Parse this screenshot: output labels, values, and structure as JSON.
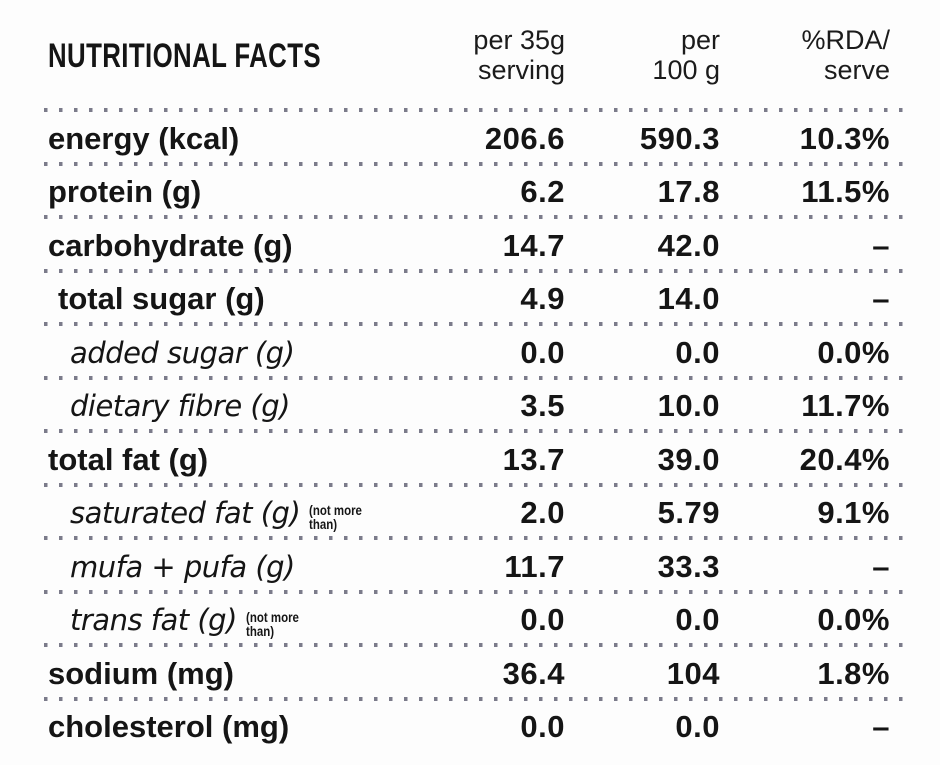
{
  "header": {
    "title": "NUTRITIONAL FACTS",
    "col_serving": "per 35g\nserving",
    "col_per_100g": "per\n100 g",
    "col_rda": "%RDA/\nserve"
  },
  "rows": [
    {
      "label": "energy (kcal)",
      "per_serving": "206.6",
      "per_100g": "590.3",
      "rda": "10.3%"
    },
    {
      "label": "protein (g)",
      "per_serving": "6.2",
      "per_100g": "17.8",
      "rda": "11.5%"
    },
    {
      "label": "carbohydrate (g)",
      "per_serving": "14.7",
      "per_100g": "42.0",
      "rda": "–"
    },
    {
      "label": "total sugar (g)",
      "per_serving": "4.9",
      "per_100g": "14.0",
      "rda": "–"
    },
    {
      "label": "added sugar (g)",
      "per_serving": "0.0",
      "per_100g": "0.0",
      "rda": "0.0%"
    },
    {
      "label": "dietary fibre (g)",
      "per_serving": "3.5",
      "per_100g": "10.0",
      "rda": "11.7%"
    },
    {
      "label": "total fat (g)",
      "per_serving": "13.7",
      "per_100g": "39.0",
      "rda": "20.4%"
    },
    {
      "label": "saturated fat (g)",
      "note": "(not more\nthan)",
      "per_serving": "2.0",
      "per_100g": "5.79",
      "rda": "9.1%"
    },
    {
      "label": "mufa + pufa (g)",
      "per_serving": "11.7",
      "per_100g": "33.3",
      "rda": "–"
    },
    {
      "label": "trans fat (g)",
      "note": "(not more\nthan)",
      "per_serving": "0.0",
      "per_100g": "0.0",
      "rda": "0.0%"
    },
    {
      "label": "sodium (mg)",
      "per_serving": "36.4",
      "per_100g": "104",
      "rda": "1.8%"
    },
    {
      "label": "cholesterol (mg)",
      "per_serving": "0.0",
      "per_100g": "0.0",
      "rda": "–"
    }
  ],
  "colors": {
    "text": "#151515",
    "dots": "#646476",
    "background": "#fdfdfd"
  }
}
